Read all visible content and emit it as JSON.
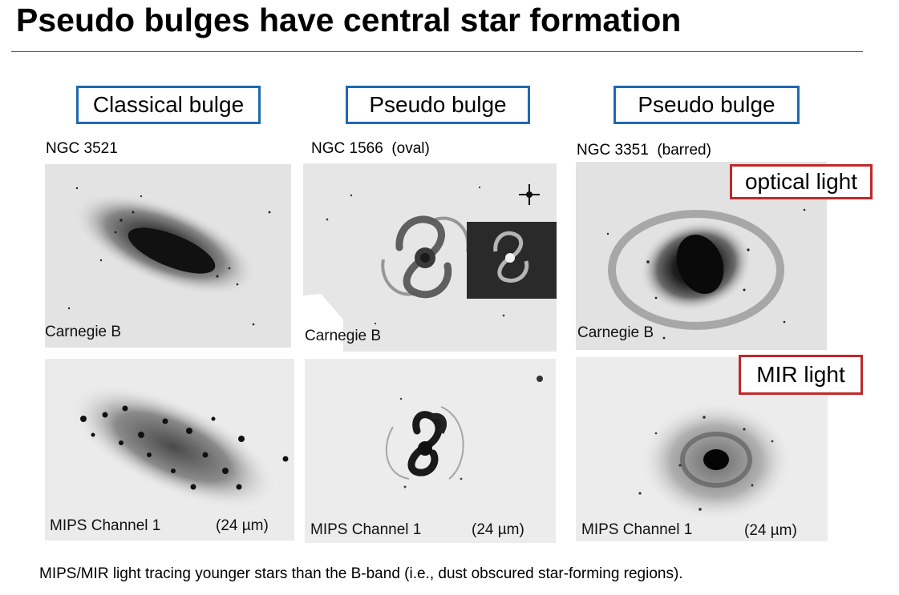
{
  "slide": {
    "title": "Pseudo bulges have central star formation",
    "caption": "MIPS/MIR light tracing younger stars than the B-band (i.e., dust obscured star-forming regions)."
  },
  "columns": [
    {
      "heading": "Classical bulge",
      "galaxy": "NGC 3521",
      "galaxy_note": ""
    },
    {
      "heading": "Pseudo bulge",
      "galaxy": "NGC 1566",
      "galaxy_note": "(oval)"
    },
    {
      "heading": "Pseudo bulge",
      "galaxy": "NGC 3351",
      "galaxy_note": "(barred)"
    }
  ],
  "row_tags": {
    "optical": "optical light",
    "mir": "MIR light"
  },
  "panel_labels": {
    "optical": "Carnegie B",
    "mir_instrument": "MIPS Channel 1",
    "mir_wavelength": "(24 µm)"
  }
}
